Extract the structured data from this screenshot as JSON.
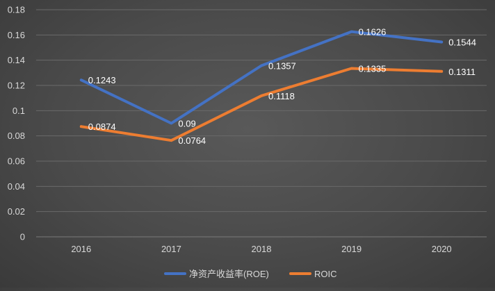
{
  "chart_data": {
    "type": "line",
    "title": "",
    "xlabel": "",
    "ylabel": "",
    "categories": [
      "2016",
      "2017",
      "2018",
      "2019",
      "2020"
    ],
    "ylim": [
      0,
      0.18
    ],
    "yticks": [
      "0",
      "0.02",
      "0.04",
      "0.06",
      "0.08",
      "0.1",
      "0.12",
      "0.14",
      "0.16",
      "0.18"
    ],
    "grid": true,
    "legend_position": "bottom",
    "series": [
      {
        "name": "净资产收益率(ROE)",
        "color": "#4472c4",
        "values": [
          0.1243,
          0.09,
          0.1357,
          0.1626,
          0.1544
        ],
        "labels": [
          "0.1243",
          "0.09",
          "0.1357",
          "0.1626",
          "0.1544"
        ]
      },
      {
        "name": "ROIC",
        "color": "#ed7d31",
        "values": [
          0.0874,
          0.0764,
          0.1118,
          0.1335,
          0.1311
        ],
        "labels": [
          "0.0874",
          "0.0764",
          "0.1118",
          "0.1335",
          "0.1311"
        ]
      }
    ]
  }
}
